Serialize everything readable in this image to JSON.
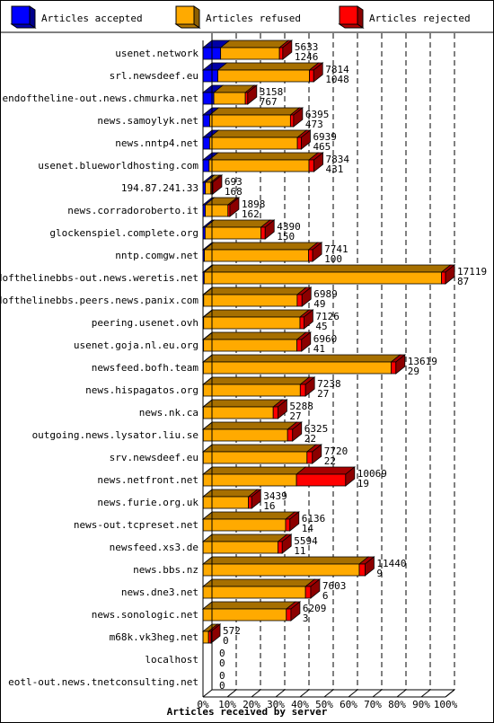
{
  "legend": [
    {
      "label": "Articles accepted",
      "color": "#0000ff"
    },
    {
      "label": "Articles refused",
      "color": "#ffaa00"
    },
    {
      "label": "Articles rejected",
      "color": "#ff0000"
    }
  ],
  "chart_data": {
    "type": "bar",
    "orientation": "horizontal",
    "stacked": true,
    "xlabel": "Articles received by server",
    "x_ticks": [
      "0%",
      "10%",
      "20%",
      "30%",
      "40%",
      "50%",
      "60%",
      "70%",
      "80%",
      "90%",
      "100%"
    ],
    "xlim": [
      0,
      17119
    ],
    "grid": "vertical dashed",
    "legend_position": "top",
    "categories": [
      "usenet.network",
      "srl.newsdeef.eu",
      "endoftheline-out.news.chmurka.net",
      "news.samoylyk.net",
      "news.nntp4.net",
      "usenet.blueworldhosting.com",
      "194.87.241.33",
      "news.corradoroberto.it",
      "glockenspiel.complete.org",
      "nntp.comgw.net",
      "endofthelinebbs-out.news.weretis.net",
      "endofthelinebbs.peers.news.panix.com",
      "peering.usenet.ovh",
      "usenet.goja.nl.eu.org",
      "newsfeed.bofh.team",
      "news.hispagatos.org",
      "news.nk.ca",
      "outgoing.news.lysator.liu.se",
      "srv.newsdeef.eu",
      "news.netfront.net",
      "news.furie.org.uk",
      "news-out.tcpreset.net",
      "newsfeed.xs3.de",
      "news.bbs.nz",
      "news.dne3.net",
      "news.sonologic.net",
      "m68k.vk3heg.net",
      "localhost",
      "eotl-out.news.tnetconsulting.net"
    ],
    "totals": [
      5633,
      7814,
      3158,
      6395,
      6939,
      7834,
      693,
      1898,
      4390,
      7741,
      17119,
      6989,
      7126,
      6960,
      13619,
      7238,
      5288,
      6325,
      7720,
      10069,
      3439,
      6136,
      5594,
      11440,
      7603,
      6209,
      572,
      0,
      0
    ],
    "accepted_labels": [
      1246,
      1048,
      767,
      473,
      465,
      431,
      168,
      162,
      150,
      100,
      87,
      49,
      45,
      41,
      29,
      27,
      27,
      22,
      22,
      19,
      16,
      14,
      11,
      9,
      6,
      3,
      0,
      0,
      0
    ],
    "series": [
      {
        "name": "Articles accepted",
        "color": "#0000ff",
        "values": [
          1246,
          1048,
          767,
          473,
          465,
          431,
          168,
          162,
          150,
          100,
          87,
          49,
          45,
          41,
          29,
          27,
          27,
          22,
          22,
          19,
          16,
          14,
          11,
          9,
          6,
          3,
          0,
          0,
          0
        ]
      },
      {
        "name": "Articles refused",
        "color": "#ffaa00",
        "values": [
          4150,
          6466,
          2220,
          5700,
          6200,
          7050,
          390,
          1600,
          3940,
          7350,
          16750,
          6600,
          6800,
          6590,
          13250,
          6840,
          4930,
          5950,
          7320,
          6580,
          3190,
          5820,
          5280,
          11020,
          7230,
          5880,
          390,
          0,
          0
        ]
      },
      {
        "name": "Articles rejected",
        "color": "#ff0000",
        "values": [
          237,
          300,
          171,
          222,
          274,
          353,
          135,
          136,
          300,
          291,
          282,
          340,
          281,
          329,
          340,
          371,
          331,
          353,
          378,
          3470,
          233,
          302,
          303,
          411,
          367,
          326,
          182,
          0,
          0
        ]
      }
    ]
  }
}
